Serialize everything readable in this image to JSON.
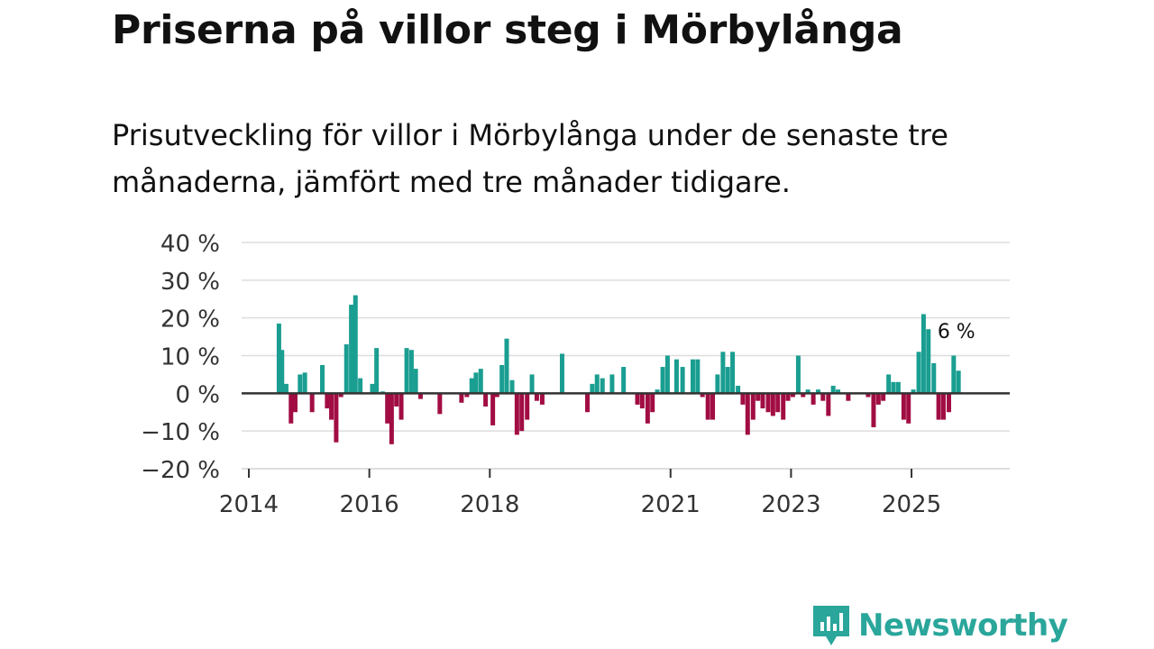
{
  "title": "Priserna på villor steg i Mörbylånga",
  "subtitle": "Prisutveckling för villor i Mörbylånga under de senaste tre månaderna, jämfört med tre månader tidigare.",
  "brand": "Newsworthy",
  "colors": {
    "positive": "#1a9e91",
    "negative": "#a10d43",
    "grid": "#dddddd",
    "axis": "#333333",
    "brand": "#2aa69b"
  },
  "chart_data": {
    "type": "bar",
    "title": "Priserna på villor steg i Mörbylånga",
    "xlabel": "",
    "ylabel": "",
    "ylim": [
      -20,
      40
    ],
    "yticks": [
      40,
      30,
      20,
      10,
      0,
      -10,
      -20
    ],
    "ytick_labels": [
      "40 %",
      "30 %",
      "20 %",
      "10 %",
      "0 %",
      "−10 %",
      "−20 %"
    ],
    "xlim": [
      2014.0,
      2026.5
    ],
    "xticks": [
      2014,
      2016,
      2018,
      2021,
      2023,
      2025
    ],
    "xtick_labels": [
      "2014",
      "2016",
      "2018",
      "2021",
      "2023",
      "2025"
    ],
    "annotation": {
      "text": "6 %",
      "x": 2025.7,
      "y": 6
    },
    "x": [
      2014.5,
      2014.55,
      2014.62,
      2014.7,
      2014.77,
      2014.85,
      2014.93,
      2015.05,
      2015.22,
      2015.3,
      2015.37,
      2015.45,
      2015.53,
      2015.62,
      2015.7,
      2015.77,
      2015.85,
      2016.05,
      2016.12,
      2016.22,
      2016.3,
      2016.37,
      2016.45,
      2016.53,
      2016.62,
      2016.7,
      2016.77,
      2016.85,
      2017.17,
      2017.53,
      2017.62,
      2017.7,
      2017.77,
      2017.85,
      2017.93,
      2018.05,
      2018.12,
      2018.2,
      2018.28,
      2018.37,
      2018.45,
      2018.53,
      2018.62,
      2018.7,
      2018.78,
      2018.87,
      2019.2,
      2019.62,
      2019.7,
      2019.78,
      2019.87,
      2020.03,
      2020.22,
      2020.45,
      2020.53,
      2020.62,
      2020.7,
      2020.78,
      2020.87,
      2020.95,
      2021.1,
      2021.2,
      2021.37,
      2021.45,
      2021.53,
      2021.62,
      2021.7,
      2021.78,
      2021.87,
      2021.95,
      2022.03,
      2022.12,
      2022.2,
      2022.28,
      2022.37,
      2022.45,
      2022.53,
      2022.62,
      2022.7,
      2022.78,
      2022.87,
      2022.95,
      2023.03,
      2023.12,
      2023.2,
      2023.28,
      2023.37,
      2023.45,
      2023.53,
      2023.62,
      2023.7,
      2023.78,
      2023.95,
      2024.28,
      2024.37,
      2024.45,
      2024.53,
      2024.62,
      2024.7,
      2024.78,
      2024.87,
      2024.95,
      2025.03,
      2025.12,
      2025.2,
      2025.28,
      2025.37,
      2025.45,
      2025.53,
      2025.62,
      2025.7,
      2025.78
    ],
    "values": [
      18.5,
      11.5,
      2.5,
      -8,
      -5,
      5,
      5.5,
      -5,
      7.5,
      -4,
      -7,
      -13,
      -1,
      13,
      23.5,
      26,
      4,
      2.5,
      12,
      0.5,
      -8,
      -13.5,
      -3.5,
      -7,
      12,
      11.5,
      6.5,
      -1.5,
      -5.5,
      -2.5,
      -1,
      4,
      5.5,
      6.5,
      -3.5,
      -8.5,
      -1,
      7.5,
      14.5,
      3.5,
      -11,
      -10,
      -7,
      5,
      -2,
      -3,
      10.5,
      -5,
      2.5,
      5,
      4,
      5,
      7,
      -3,
      -4,
      -8,
      -5,
      1,
      7,
      10,
      9,
      7,
      9,
      9,
      -1,
      -7,
      -7,
      5,
      11,
      7,
      11,
      2,
      -3,
      -11,
      -7,
      -2,
      -4,
      -5,
      -6,
      -5,
      -7,
      -2,
      -1,
      10,
      -1,
      1,
      -3,
      1,
      -2,
      -6,
      2,
      1,
      -2,
      -1,
      -9,
      -3,
      -2,
      5,
      3,
      3,
      -7,
      -8,
      1,
      11,
      21,
      17,
      8,
      -7,
      -7,
      -5,
      10,
      6
    ]
  }
}
